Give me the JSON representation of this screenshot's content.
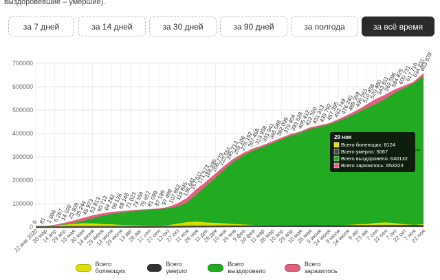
{
  "intro_text": "выздоровевшие – умершие).",
  "range_buttons": [
    {
      "label": "за 7 дней",
      "active": false
    },
    {
      "label": "за 14 дней",
      "active": false
    },
    {
      "label": "за 30 дней",
      "active": false
    },
    {
      "label": "за 90 дней",
      "active": false
    },
    {
      "label": "за полгода",
      "active": false
    },
    {
      "label": "за всё время",
      "active": true
    }
  ],
  "tooltip": {
    "title": "29 ноя",
    "rows": [
      {
        "label": "Всего болеющих: 8124",
        "color": "#dede00"
      },
      {
        "label": "Всего умерло: 5067",
        "color": "#444444"
      },
      {
        "label": "Всего выздоровело: 640132",
        "color": "#22aa22"
      },
      {
        "label": "Всего заразилось: 653323",
        "color": "#e06080"
      }
    ]
  },
  "legend": [
    {
      "label": "Всего болеющих",
      "color": "#dede00"
    },
    {
      "label": "Всего умерло",
      "color": "#333333"
    },
    {
      "label": "Всего выздоровело",
      "color": "#22aa22"
    },
    {
      "label": "Всего заразилось",
      "color": "#e06080"
    }
  ],
  "chart_data": {
    "type": "area",
    "yticks": [
      "0",
      "100000",
      "200000",
      "300000",
      "400000",
      "500000",
      "600000",
      "700000"
    ],
    "ylim": [
      0,
      700000
    ],
    "grid": true,
    "legend_position": "bottom",
    "xlabels": [
      "22 янв 2020",
      "30 мар",
      "14 апр",
      "29 апр",
      "15 мая",
      "30 мая",
      "14 июня",
      "29 июня",
      "14 июля",
      "29 июля",
      "13 авг",
      "28 авг",
      "12 сен",
      "27 сен",
      "12 окт",
      "27 окт",
      "11 ноя",
      "26 ноя",
      "11 дек",
      "26 дек",
      "10 янв",
      "25 янв",
      "9 фев",
      "24 фев",
      "11 мар",
      "26 мар",
      "10 апр",
      "25 апр",
      "10 мая",
      "25 мая",
      "9 июня",
      "24 июня",
      "9 июля",
      "24 июля",
      "8 авг",
      "23 авг",
      "7 сен",
      "22 сен",
      "7 окт",
      "22 окт",
      "7 ноя",
      "22 ноя"
    ],
    "total_labels": [
      "0",
      "81",
      "1 066",
      "6 267",
      "14 020",
      "23 909",
      "35 244",
      "45 973",
      "53 813",
      "60 713",
      "64 242",
      "68 126",
      "69 148",
      "71 023",
      "73 164",
      "75 657",
      "81 099",
      "87 189",
      "97 499",
      "107 862",
      "119 845",
      "136 641",
      "157 611",
      "171 573",
      "188 596",
      "206 779",
      "223 551",
      "245 712",
      "259 106",
      "276 192",
      "307 458",
      "313 938",
      "331 941",
      "345 588",
      "362 099",
      "379 404",
      "393 528",
      "405 412",
      "422 350",
      "431 313",
      "439 792",
      "457 395",
      "462 749",
      "476 240",
      "489 359",
      "496 561",
      "510 458",
      "520 480",
      "543 811",
      "562 596",
      "584 825",
      "600 731",
      "617 716",
      "634 231",
      "653 839"
    ],
    "series": [
      {
        "name": "Всего заразилось",
        "color": "#e06080",
        "values": [
          0,
          1000,
          6000,
          14000,
          24000,
          35000,
          46000,
          54000,
          61000,
          64000,
          68000,
          71000,
          73000,
          76000,
          82000,
          97000,
          120000,
          158000,
          189000,
          224000,
          259000,
          290000,
          314000,
          332000,
          346000,
          362000,
          379000,
          394000,
          405000,
          422000,
          431000,
          440000,
          457000,
          476000,
          496000,
          520000,
          544000,
          563000,
          585000,
          601000,
          618000,
          653323
        ]
      },
      {
        "name": "Всего выздоровело",
        "color": "#22aa22",
        "values": [
          0,
          500,
          3000,
          8000,
          14000,
          22000,
          33000,
          44000,
          52000,
          58000,
          63000,
          67000,
          70000,
          73000,
          77000,
          84000,
          100000,
          135000,
          170000,
          206000,
          243000,
          277000,
          303000,
          323000,
          338000,
          354000,
          371000,
          386000,
          399000,
          415000,
          424000,
          434000,
          449000,
          466000,
          484000,
          505000,
          522000,
          544000,
          569000,
          590000,
          610000,
          640132
        ]
      },
      {
        "name": "Всего болеющих",
        "color": "#dede00",
        "values": [
          0,
          500,
          3000,
          6000,
          9500,
          12500,
          12000,
          9000,
          8000,
          5000,
          4200,
          3200,
          2000,
          2000,
          4000,
          11000,
          17000,
          19500,
          16000,
          14000,
          12000,
          9000,
          7000,
          5000,
          4500,
          4000,
          4000,
          4200,
          3000,
          3500,
          3500,
          3000,
          3800,
          5500,
          7500,
          9000,
          14000,
          16000,
          13000,
          8000,
          5500,
          8124
        ]
      },
      {
        "name": "Всего умерло",
        "color": "#444444",
        "values": [
          0,
          10,
          40,
          100,
          200,
          300,
          400,
          500,
          600,
          700,
          800,
          900,
          1000,
          1100,
          1200,
          1400,
          1700,
          2000,
          2300,
          2600,
          2900,
          3100,
          3300,
          3400,
          3500,
          3600,
          3700,
          3800,
          3900,
          4000,
          4050,
          4100,
          4200,
          4300,
          4400,
          4500,
          4600,
          4700,
          4800,
          4900,
          5000,
          5067
        ]
      }
    ]
  }
}
